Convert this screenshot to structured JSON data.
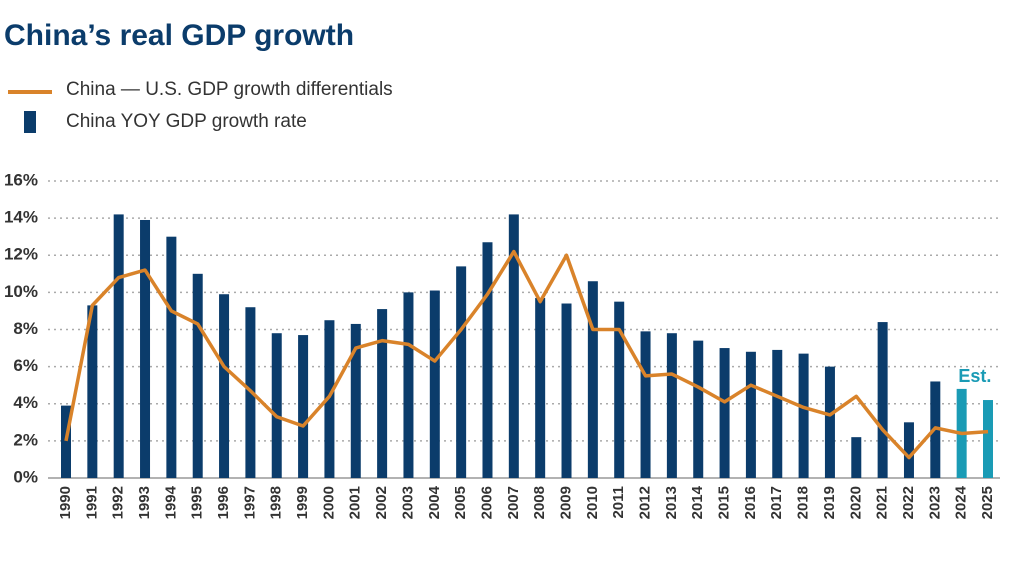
{
  "chart_data": {
    "type": "bar",
    "title": "China’s real GDP growth",
    "categories": [
      "1990",
      "1991",
      "1992",
      "1993",
      "1994",
      "1995",
      "1996",
      "1997",
      "1998",
      "1999",
      "2000",
      "2001",
      "2002",
      "2003",
      "2004",
      "2005",
      "2006",
      "2007",
      "2008",
      "2009",
      "2010",
      "2011",
      "2012",
      "2013",
      "2014",
      "2015",
      "2016",
      "2017",
      "2018",
      "2019",
      "2020",
      "2021",
      "2022",
      "2023",
      "2024",
      "2025"
    ],
    "series": [
      {
        "name": "China — U.S. GDP growth differentials",
        "type": "line",
        "color": "#d9832a",
        "values": [
          2.0,
          9.3,
          10.8,
          11.2,
          9.0,
          8.3,
          6.0,
          4.7,
          3.3,
          2.8,
          4.4,
          7.0,
          7.4,
          7.2,
          6.3,
          8.0,
          9.9,
          12.2,
          9.5,
          12.0,
          8.0,
          8.0,
          5.5,
          5.6,
          4.9,
          4.1,
          5.0,
          4.4,
          3.8,
          3.4,
          4.4,
          2.6,
          1.1,
          2.7,
          2.4,
          2.5
        ]
      },
      {
        "name": "China YOY GDP growth rate",
        "type": "bar",
        "color": "#0b3c6b",
        "values": [
          3.9,
          9.3,
          14.2,
          13.9,
          13.0,
          11.0,
          9.9,
          9.2,
          7.8,
          7.7,
          8.5,
          8.3,
          9.1,
          10.0,
          10.1,
          11.4,
          12.7,
          14.2,
          9.7,
          9.4,
          10.6,
          9.5,
          7.9,
          7.8,
          7.4,
          7.0,
          6.8,
          6.9,
          6.7,
          6.0,
          2.2,
          8.4,
          3.0,
          5.2,
          4.8,
          4.2
        ],
        "colors": [
          "#0b3c6b",
          "#0b3c6b",
          "#0b3c6b",
          "#0b3c6b",
          "#0b3c6b",
          "#0b3c6b",
          "#0b3c6b",
          "#0b3c6b",
          "#0b3c6b",
          "#0b3c6b",
          "#0b3c6b",
          "#0b3c6b",
          "#0b3c6b",
          "#0b3c6b",
          "#0b3c6b",
          "#0b3c6b",
          "#0b3c6b",
          "#0b3c6b",
          "#0b3c6b",
          "#0b3c6b",
          "#0b3c6b",
          "#0b3c6b",
          "#0b3c6b",
          "#0b3c6b",
          "#0b3c6b",
          "#0b3c6b",
          "#0b3c6b",
          "#0b3c6b",
          "#0b3c6b",
          "#0b3c6b",
          "#0b3c6b",
          "#0b3c6b",
          "#0b3c6b",
          "#0b3c6b",
          "#1a9bb5",
          "#1a9bb5"
        ]
      }
    ],
    "annotation": {
      "text": "Est.",
      "color": "#1a9bb5"
    },
    "ylim": [
      0,
      16
    ],
    "yticks": [
      {
        "value": 0,
        "label": "0%"
      },
      {
        "value": 2,
        "label": "2%"
      },
      {
        "value": 4,
        "label": "4%"
      },
      {
        "value": 6,
        "label": "6%"
      },
      {
        "value": 8,
        "label": "8%"
      },
      {
        "value": 10,
        "label": "10%"
      },
      {
        "value": 12,
        "label": "12%"
      },
      {
        "value": 14,
        "label": "14%"
      },
      {
        "value": 16,
        "label": "16%"
      }
    ],
    "grid": true,
    "legend": "top-left"
  }
}
